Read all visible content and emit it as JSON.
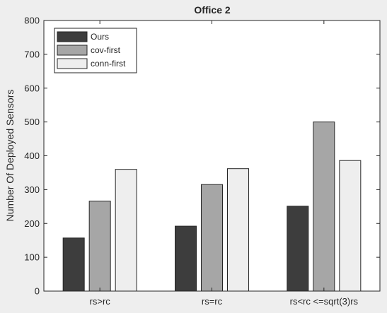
{
  "chart_data": {
    "type": "bar",
    "title": "Office 2",
    "xlabel": "",
    "ylabel": "Number Of Deployed Sensors",
    "categories": [
      "rs>rc",
      "rs=rc",
      "rs<rc <=sqrt(3)rs"
    ],
    "ylim": [
      0,
      800
    ],
    "yticks": [
      0,
      100,
      200,
      300,
      400,
      500,
      600,
      700,
      800
    ],
    "grid": false,
    "legend_position": "top-left",
    "series": [
      {
        "name": "Ours",
        "color": "#3d3d3d",
        "values": [
          157,
          192,
          251
        ]
      },
      {
        "name": "cov-first",
        "color": "#a6a6a6",
        "values": [
          266,
          315,
          500
        ]
      },
      {
        "name": "conn-first",
        "color": "#eeeeee",
        "values": [
          360,
          362,
          386
        ]
      }
    ]
  }
}
